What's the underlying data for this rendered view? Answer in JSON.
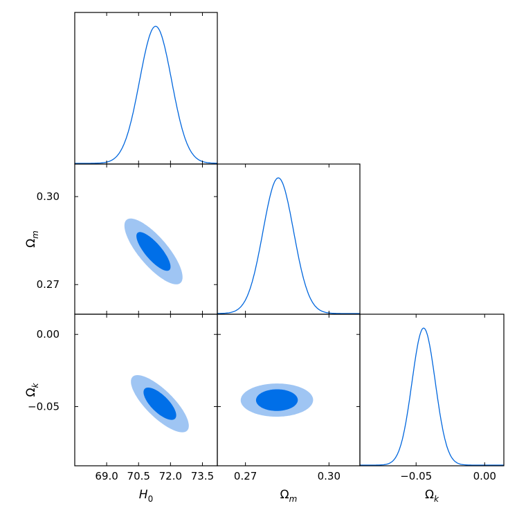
{
  "chart_data": {
    "type": "triangle-corner-plot",
    "parameters": [
      {
        "name": "H0",
        "label_base": "H",
        "label_sub": "0",
        "lim": [
          67.5,
          74.2
        ],
        "ticks": [
          69.0,
          70.5,
          72.0,
          73.5
        ],
        "tick_labels": [
          "69.0",
          "70.5",
          "72.0",
          "73.5"
        ]
      },
      {
        "name": "Omega_m",
        "label_base": "Ω",
        "label_sub": "m",
        "lim": [
          0.2599,
          0.3111
        ],
        "ticks": [
          0.27,
          0.3
        ],
        "tick_labels": [
          "0.27",
          "0.30"
        ]
      },
      {
        "name": "Omega_k",
        "label_base": "Ω",
        "label_sub": "k",
        "lim": [
          -0.091,
          0.014
        ],
        "ticks": [
          -0.05,
          0.0
        ],
        "tick_labels": [
          "−0.05",
          "0.00"
        ]
      }
    ],
    "marginals": [
      {
        "parameter": "H0",
        "mean": 71.3,
        "sigma": 0.75
      },
      {
        "parameter": "Omega_m",
        "mean": 0.2818,
        "sigma": 0.0055
      },
      {
        "parameter": "Omega_k",
        "mean": -0.0445,
        "sigma": 0.0085
      }
    ],
    "contours": [
      {
        "x": "H0",
        "y": "Omega_m",
        "center": [
          71.2,
          0.2813
        ],
        "inner": {
          "semi_axes": [
            1.15,
            0.0028
          ],
          "angle_deg": -0.275
        },
        "outer": {
          "semi_axes": [
            1.95,
            0.0049
          ],
          "angle_deg": -0.275
        }
      },
      {
        "x": "H0",
        "y": "Omega_k",
        "center": [
          71.5,
          -0.048
        ],
        "inner": {
          "semi_axes": [
            1.0,
            0.006
          ],
          "angle_deg": -1.0
        },
        "outer": {
          "semi_axes": [
            1.8,
            0.0095
          ],
          "angle_deg": -1.0
        }
      },
      {
        "x": "Omega_m",
        "y": "Omega_k",
        "center": [
          0.2813,
          -0.0455
        ],
        "inner": {
          "semi_axes": [
            0.0075,
            0.0075
          ],
          "angle_deg": 1.0
        },
        "outer": {
          "semi_axes": [
            0.013,
            0.0115
          ],
          "angle_deg": 1.0
        }
      }
    ],
    "colors": {
      "line": "#0066dd",
      "inner_fill": "#006fe8",
      "outer_fill": "#9fc5f3"
    }
  }
}
